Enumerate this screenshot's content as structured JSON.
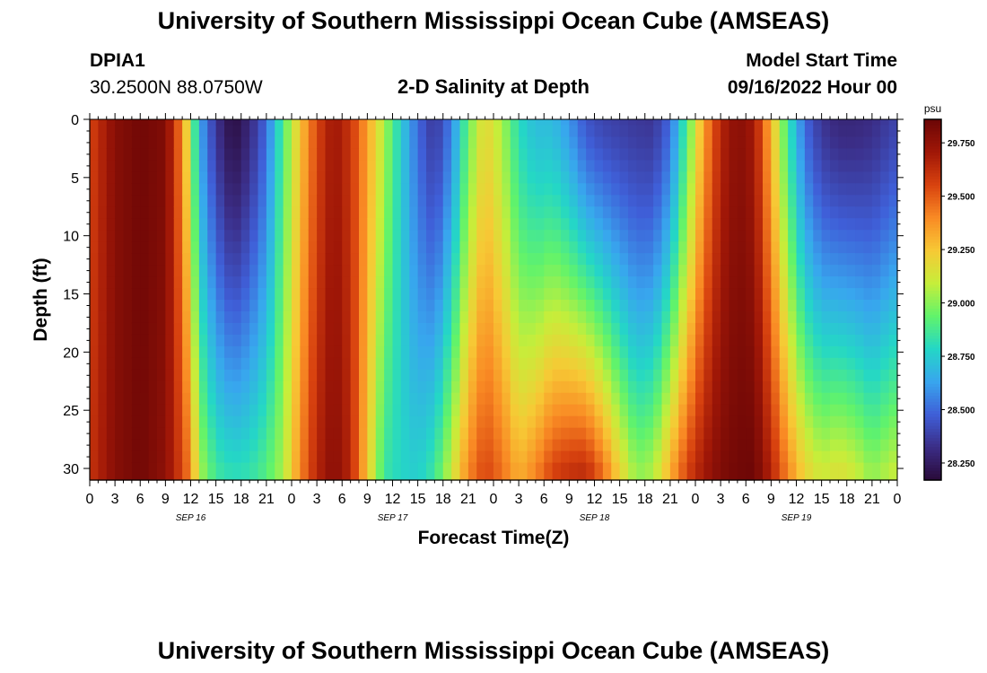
{
  "header": {
    "title": "University of Southern Mississippi Ocean Cube (AMSEAS)",
    "station_id": "DPIA1",
    "station_coords": "30.2500N  88.0750W",
    "model_start_label": "Model Start Time",
    "model_start_value": "09/16/2022 Hour 00"
  },
  "footer": {
    "title": "University of Southern Mississippi Ocean Cube (AMSEAS)"
  },
  "colors": {
    "colormap": [
      "#2a0a3a",
      "#3b2d86",
      "#3f5fd8",
      "#38a6ee",
      "#24d7c6",
      "#61f36b",
      "#c6ee3a",
      "#f7c935",
      "#f98a24",
      "#d8420f",
      "#a01707",
      "#6b0606"
    ]
  },
  "chart_data": {
    "type": "heatmap",
    "title": "2-D Salinity at Depth",
    "xlabel": "Forecast Time(Z)",
    "ylabel": "Depth (ft)",
    "colorbar_label": "psu",
    "value_range": [
      28.17,
      29.86
    ],
    "colorbar_ticks": [
      "29.750",
      "29.500",
      "29.250",
      "29.000",
      "28.750",
      "28.500",
      "28.250"
    ],
    "colorbar_tick_values": [
      29.75,
      29.5,
      29.25,
      29.0,
      28.75,
      28.5,
      28.25
    ],
    "xlim_hours": [
      0,
      96
    ],
    "ylim_ft": [
      0,
      31
    ],
    "y_ticks": [
      0,
      5,
      10,
      15,
      20,
      25,
      30
    ],
    "x_tick_hours": [
      0,
      3,
      6,
      9,
      12,
      15,
      18,
      21,
      24,
      27,
      30,
      33,
      36,
      39,
      42,
      45,
      48,
      51,
      54,
      57,
      60,
      63,
      66,
      69,
      72,
      75,
      78,
      81,
      84,
      87,
      90,
      93,
      96
    ],
    "x_tick_labels": [
      "0",
      "3",
      "6",
      "9",
      "12",
      "15",
      "18",
      "21",
      "0",
      "3",
      "6",
      "9",
      "12",
      "15",
      "18",
      "21",
      "0",
      "3",
      "6",
      "9",
      "12",
      "15",
      "18",
      "21",
      "0",
      "3",
      "6",
      "9",
      "12",
      "15",
      "18",
      "21",
      "0"
    ],
    "day_labels": [
      {
        "hour": 12,
        "label": "SEP 16"
      },
      {
        "hour": 36,
        "label": "SEP 17"
      },
      {
        "hour": 60,
        "label": "SEP 18"
      },
      {
        "hour": 84,
        "label": "SEP 19"
      }
    ],
    "time_step_hours": 1,
    "depth_levels_ft": [
      0,
      1,
      2,
      3,
      4,
      5,
      6,
      7,
      8,
      9,
      10,
      11,
      12,
      13,
      14,
      15,
      16,
      17,
      18,
      19,
      20,
      21,
      22,
      23,
      24,
      25,
      26,
      27,
      28,
      29,
      30
    ],
    "salinity_knots": [
      {
        "hour": 0,
        "surface": 29.55,
        "bottom": 29.6
      },
      {
        "hour": 3,
        "surface": 29.78,
        "bottom": 29.78
      },
      {
        "hour": 6,
        "surface": 29.84,
        "bottom": 29.84
      },
      {
        "hour": 9,
        "surface": 29.8,
        "bottom": 29.76
      },
      {
        "hour": 11,
        "surface": 29.4,
        "bottom": 29.55
      },
      {
        "hour": 12,
        "surface": 29.05,
        "bottom": 29.4
      },
      {
        "hour": 13,
        "surface": 28.65,
        "bottom": 29.05
      },
      {
        "hour": 15,
        "surface": 28.35,
        "bottom": 28.85
      },
      {
        "hour": 17,
        "surface": 28.18,
        "bottom": 28.8
      },
      {
        "hour": 19,
        "surface": 28.3,
        "bottom": 28.82
      },
      {
        "hour": 21,
        "surface": 28.5,
        "bottom": 28.9
      },
      {
        "hour": 23,
        "surface": 28.9,
        "bottom": 29.05
      },
      {
        "hour": 25,
        "surface": 29.25,
        "bottom": 29.4
      },
      {
        "hour": 27,
        "surface": 29.55,
        "bottom": 29.65
      },
      {
        "hour": 29,
        "surface": 29.72,
        "bottom": 29.78
      },
      {
        "hour": 31,
        "surface": 29.6,
        "bottom": 29.65
      },
      {
        "hour": 33,
        "surface": 29.35,
        "bottom": 29.25
      },
      {
        "hour": 35,
        "surface": 29.05,
        "bottom": 28.85
      },
      {
        "hour": 37,
        "surface": 28.75,
        "bottom": 28.78
      },
      {
        "hour": 39,
        "surface": 28.5,
        "bottom": 28.75
      },
      {
        "hour": 41,
        "surface": 28.35,
        "bottom": 28.85
      },
      {
        "hour": 43,
        "surface": 28.55,
        "bottom": 29.1
      },
      {
        "hour": 45,
        "surface": 28.95,
        "bottom": 29.4
      },
      {
        "hour": 47,
        "surface": 29.2,
        "bottom": 29.55
      },
      {
        "hour": 49,
        "surface": 29.05,
        "bottom": 29.45
      },
      {
        "hour": 51,
        "surface": 28.8,
        "bottom": 29.3
      },
      {
        "hour": 53,
        "surface": 28.7,
        "bottom": 29.4
      },
      {
        "hour": 55,
        "surface": 28.7,
        "bottom": 29.55
      },
      {
        "hour": 57,
        "surface": 28.6,
        "bottom": 29.6
      },
      {
        "hour": 59,
        "surface": 28.45,
        "bottom": 29.62
      },
      {
        "hour": 61,
        "surface": 28.4,
        "bottom": 29.45
      },
      {
        "hour": 63,
        "surface": 28.38,
        "bottom": 29.2
      },
      {
        "hour": 65,
        "surface": 28.36,
        "bottom": 29.0
      },
      {
        "hour": 67,
        "surface": 28.35,
        "bottom": 29.05
      },
      {
        "hour": 69,
        "surface": 28.5,
        "bottom": 29.3
      },
      {
        "hour": 71,
        "surface": 28.9,
        "bottom": 29.55
      },
      {
        "hour": 73,
        "surface": 29.35,
        "bottom": 29.7
      },
      {
        "hour": 75,
        "surface": 29.65,
        "bottom": 29.8
      },
      {
        "hour": 77,
        "surface": 29.78,
        "bottom": 29.84
      },
      {
        "hour": 79,
        "surface": 29.7,
        "bottom": 29.85
      },
      {
        "hour": 81,
        "surface": 29.3,
        "bottom": 29.65
      },
      {
        "hour": 83,
        "surface": 28.85,
        "bottom": 29.4
      },
      {
        "hour": 85,
        "surface": 28.5,
        "bottom": 29.2
      },
      {
        "hour": 87,
        "surface": 28.35,
        "bottom": 29.1
      },
      {
        "hour": 89,
        "surface": 28.3,
        "bottom": 29.15
      },
      {
        "hour": 91,
        "surface": 28.3,
        "bottom": 29.1
      },
      {
        "hour": 93,
        "surface": 28.32,
        "bottom": 29.0
      },
      {
        "hour": 96,
        "surface": 28.4,
        "bottom": 29.1
      }
    ]
  }
}
